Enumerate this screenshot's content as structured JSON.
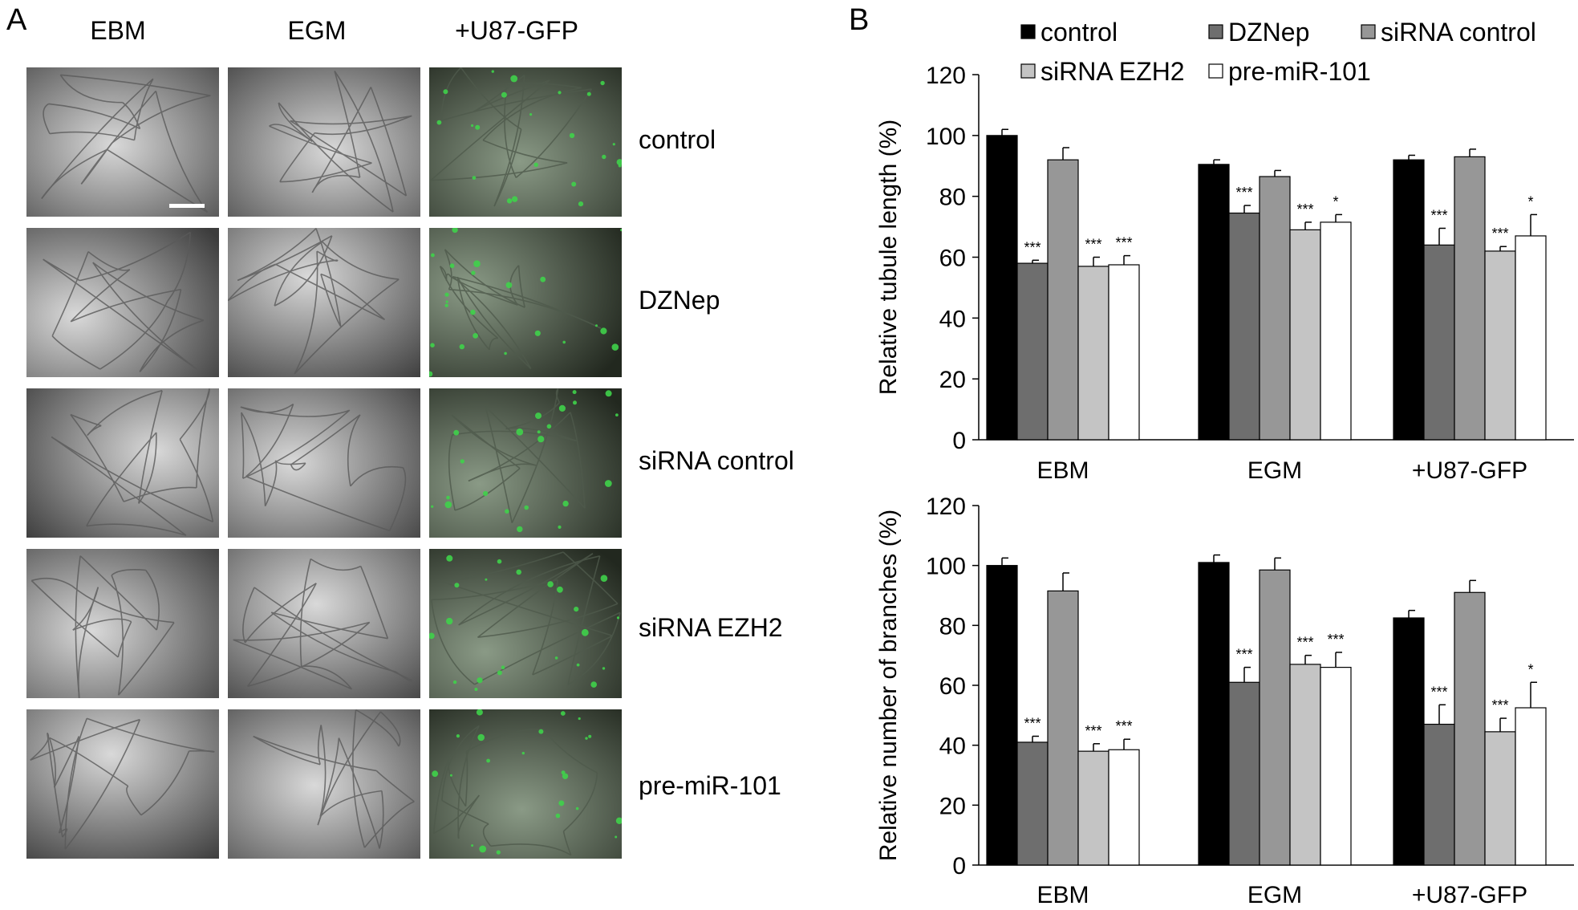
{
  "panel_labels": [
    "A",
    "B"
  ],
  "micrographs": {
    "columns": [
      "EBM",
      "EGM",
      "+U87-GFP"
    ],
    "rows": [
      "control",
      "DZNep",
      "siRNA control",
      "siRNA EZH2",
      "pre-miR-101"
    ]
  },
  "colors": {
    "control": "#000000",
    "DZNep": "#6e6e6e",
    "siRNA control": "#979797",
    "siRNA EZH2": "#c4c4c4",
    "pre-miR-101": "#ffffff",
    "gfp": "#3fd24a"
  },
  "chart_data": [
    {
      "type": "bar",
      "ylabel": "Relative tubule length (%)",
      "xlabel": "",
      "ylim": [
        0,
        120
      ],
      "yticks": [
        0,
        20,
        40,
        60,
        80,
        100,
        120
      ],
      "categories": [
        "EBM",
        "EGM",
        "+U87-GFP"
      ],
      "legend": "top",
      "series": [
        {
          "name": "control",
          "values": [
            100,
            90.5,
            92
          ],
          "errors": [
            2,
            1.5,
            1.5
          ],
          "sig": [
            "",
            "",
            ""
          ]
        },
        {
          "name": "DZNep",
          "values": [
            58,
            74.5,
            64
          ],
          "errors": [
            1,
            2.5,
            5.5
          ],
          "sig": [
            "***",
            "***",
            "***"
          ]
        },
        {
          "name": "siRNA control",
          "values": [
            92,
            86.5,
            93
          ],
          "errors": [
            4,
            2,
            2.5
          ],
          "sig": [
            "",
            "",
            ""
          ]
        },
        {
          "name": "siRNA EZH2",
          "values": [
            57,
            69,
            62
          ],
          "errors": [
            3,
            2.5,
            1.5
          ],
          "sig": [
            "***",
            "***",
            "***"
          ]
        },
        {
          "name": "pre-miR-101",
          "values": [
            57.5,
            71.5,
            67
          ],
          "errors": [
            3,
            2.5,
            7
          ],
          "sig": [
            "***",
            "*",
            "*"
          ]
        }
      ]
    },
    {
      "type": "bar",
      "ylabel": "Relative number of branches (%)",
      "xlabel": "",
      "ylim": [
        0,
        120
      ],
      "yticks": [
        0,
        20,
        40,
        60,
        80,
        100,
        120
      ],
      "categories": [
        "EBM",
        "EGM",
        "+U87-GFP"
      ],
      "series": [
        {
          "name": "control",
          "values": [
            100,
            101,
            82.5
          ],
          "errors": [
            2.5,
            2.5,
            2.5
          ],
          "sig": [
            "",
            "",
            ""
          ]
        },
        {
          "name": "DZNep",
          "values": [
            41,
            61,
            47
          ],
          "errors": [
            2,
            5,
            6.5
          ],
          "sig": [
            "***",
            "***",
            "***"
          ]
        },
        {
          "name": "siRNA control",
          "values": [
            91.5,
            98.5,
            91
          ],
          "errors": [
            6,
            4,
            4
          ],
          "sig": [
            "",
            "",
            ""
          ]
        },
        {
          "name": "siRNA EZH2",
          "values": [
            38,
            67,
            44.5
          ],
          "errors": [
            2.5,
            3,
            4.5
          ],
          "sig": [
            "***",
            "***",
            "***"
          ]
        },
        {
          "name": "pre-miR-101",
          "values": [
            38.5,
            66,
            52.5
          ],
          "errors": [
            3.5,
            5,
            8.5
          ],
          "sig": [
            "***",
            "***",
            "*"
          ]
        }
      ]
    }
  ]
}
